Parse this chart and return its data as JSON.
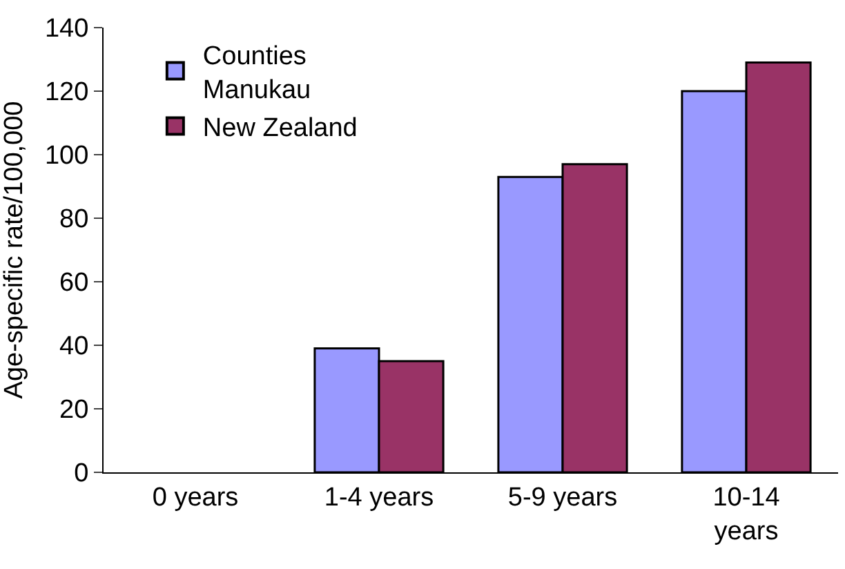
{
  "chart_data": {
    "type": "bar",
    "ylabel": "Age-specific rate/100,000",
    "categories": [
      "0 years",
      "1-4 years",
      "5-9 years",
      "10-14 years"
    ],
    "series": [
      {
        "name": "Counties Manukau",
        "color": "#9999ff",
        "values": [
          null,
          39,
          93,
          120
        ]
      },
      {
        "name": "New Zealand",
        "color": "#993366",
        "values": [
          null,
          35,
          97,
          129
        ]
      }
    ],
    "ylim": [
      0,
      140
    ],
    "yticks": [
      0,
      20,
      40,
      60,
      80,
      100,
      120,
      140
    ],
    "legend": "top left"
  }
}
